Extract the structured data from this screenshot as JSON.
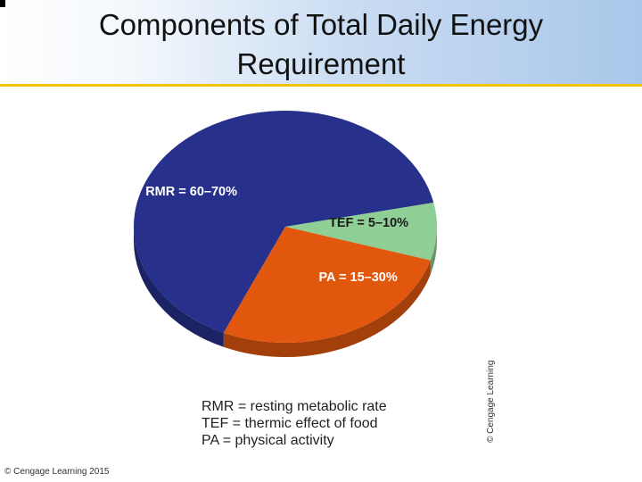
{
  "slide": {
    "title_line1": "Components of Total Daily Energy",
    "title_line2": "Requirement",
    "footer": "© Cengage Learning 2015",
    "image_credit": "© Cengage Learning"
  },
  "chart_data": {
    "type": "pie",
    "title": "",
    "slices": [
      {
        "label": "RMR = 60–70%",
        "value": 65,
        "color": "#27318c"
      },
      {
        "label": "TEF = 5–10%",
        "value": 8,
        "color": "#8fcf96"
      },
      {
        "label": "PA = 15–30%",
        "value": 27,
        "color": "#e2570e"
      }
    ],
    "legend": [
      "RMR = resting metabolic rate",
      "TEF = thermic effect of food",
      "PA = physical activity"
    ],
    "legend_position": "bottom"
  }
}
